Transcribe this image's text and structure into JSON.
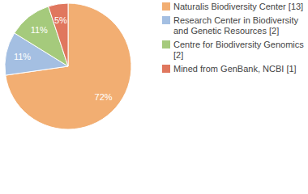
{
  "chart_data": {
    "type": "pie",
    "categories": [
      "Naturalis Biodiversity Center [13]",
      "Research Center in Biodiversity and Genetic Resources [2]",
      "Centre for Biodiversity Genomics [2]",
      "Mined from GenBank, NCBI [1]"
    ],
    "values": [
      72,
      11,
      11,
      5
    ],
    "value_labels": [
      "72%",
      "11%",
      "11%",
      "5%"
    ],
    "colors": [
      "#f2ae72",
      "#a4bfe2",
      "#a5ca7c",
      "#e0775e"
    ],
    "data_labels": true,
    "legend": "top-right"
  }
}
